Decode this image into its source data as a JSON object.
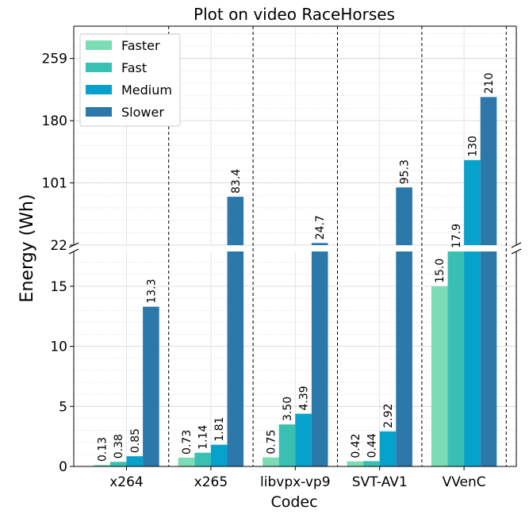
{
  "chart_data": {
    "type": "bar",
    "title": "Plot on video RaceHorses",
    "xlabel": "Codec",
    "ylabel": "Energy (Wh)",
    "categories": [
      "x264",
      "x265",
      "libvpx-vp9",
      "SVT-AV1",
      "VVenC"
    ],
    "series": [
      {
        "name": "Faster",
        "color": "#7cdcb5",
        "values": [
          0.13,
          0.73,
          0.75,
          0.42,
          15.0
        ],
        "labels": [
          "0.13",
          "0.73",
          "0.75",
          "0.42",
          "15.0"
        ]
      },
      {
        "name": "Fast",
        "color": "#38c0b3",
        "values": [
          0.38,
          1.14,
          3.5,
          0.44,
          17.9
        ],
        "labels": [
          "0.38",
          "1.14",
          "3.50",
          "0.44",
          "17.9"
        ]
      },
      {
        "name": "Medium",
        "color": "#06a2cb",
        "values": [
          0.85,
          1.81,
          4.39,
          2.92,
          130
        ],
        "labels": [
          "0.85",
          "1.81",
          "4.39",
          "2.92",
          "130"
        ]
      },
      {
        "name": "Slower",
        "color": "#2c78aa",
        "values": [
          13.3,
          83.4,
          24.7,
          95.3,
          210
        ],
        "labels": [
          "13.3",
          "83.4",
          "24.7",
          "95.3",
          "210"
        ]
      }
    ],
    "axis_break": true,
    "lower_axis": {
      "ylim": [
        0,
        17.9
      ],
      "ticks": [
        0,
        5,
        10,
        15
      ],
      "tick_labels": [
        "0",
        "5",
        "10",
        "15"
      ]
    },
    "upper_axis": {
      "ylim": [
        22,
        300
      ],
      "ticks": [
        22,
        101,
        180,
        259
      ],
      "tick_labels": [
        "22",
        "101",
        "180",
        "259"
      ]
    },
    "grid": true,
    "legend": "top-left"
  }
}
